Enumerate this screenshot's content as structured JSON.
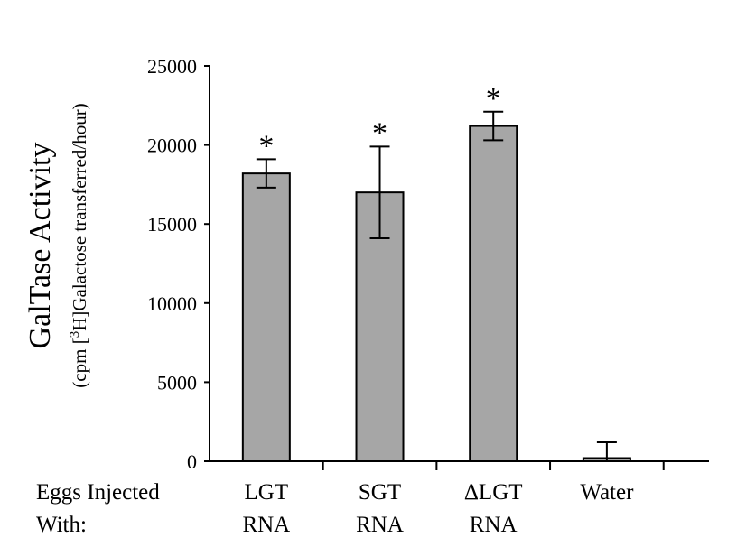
{
  "chart_data": {
    "type": "bar",
    "categories": [
      {
        "line1": "LGT",
        "line2": "RNA"
      },
      {
        "line1": "SGT",
        "line2": "RNA"
      },
      {
        "line1": "ΔLGT",
        "line2": "RNA"
      },
      {
        "line1": "Water",
        "line2": ""
      }
    ],
    "values": [
      18200,
      17000,
      21200,
      200
    ],
    "errors": [
      900,
      2900,
      900,
      1000
    ],
    "significance": [
      "*",
      "*",
      "*",
      ""
    ],
    "ylim": [
      0,
      25000
    ],
    "yticks": [
      0,
      5000,
      10000,
      15000,
      20000,
      25000
    ],
    "ylabel": "GalTase Activity",
    "ylabel_sub_pre": "(cpm [",
    "ylabel_sub_sup": "3",
    "ylabel_sub_post": "H]Galactose transferred/hour)",
    "group_label_line1": "Eggs Injected",
    "group_label_line2": "With:",
    "grid": false,
    "bar_color": "#a6a6a6"
  }
}
